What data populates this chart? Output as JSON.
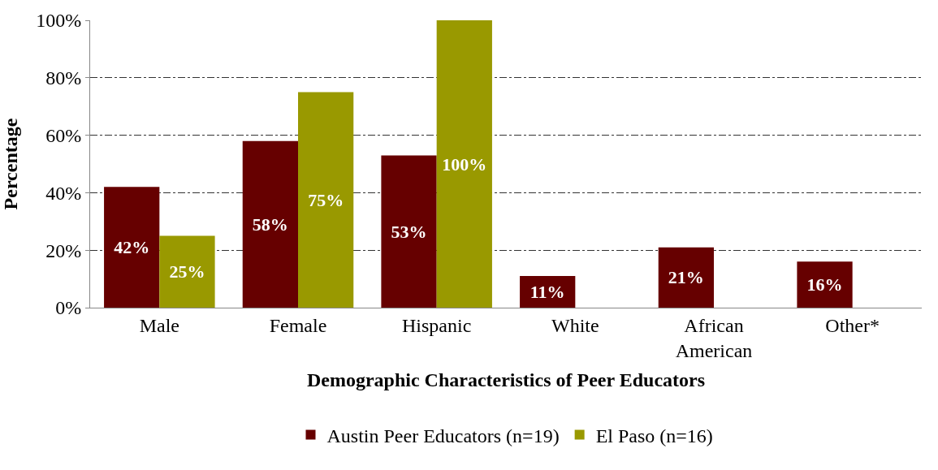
{
  "chart_data": {
    "type": "bar",
    "xlabel": "Demographic Characteristics of Peer Educators",
    "ylabel": "Percentage",
    "categories": [
      "Male",
      "Female",
      "Hispanic",
      "White",
      "African American",
      "Other*"
    ],
    "series": [
      {
        "name": "Austin Peer Educators (n=19)",
        "color": "#660000",
        "values": [
          42,
          58,
          53,
          11,
          21,
          16
        ],
        "value_labels": [
          "42%",
          "58%",
          "53%",
          "11%",
          "21%",
          "16%"
        ]
      },
      {
        "name": "El Paso (n=16)",
        "color": "#999900",
        "values": [
          25,
          75,
          100,
          null,
          null,
          null
        ],
        "value_labels": [
          "25%",
          "75%",
          "100%",
          null,
          null,
          null
        ]
      }
    ],
    "ylim": [
      0,
      100
    ],
    "yticks": [
      {
        "value": 0,
        "label": "0%"
      },
      {
        "value": 20,
        "label": "20%"
      },
      {
        "value": 40,
        "label": "40%"
      },
      {
        "value": 60,
        "label": "60%"
      },
      {
        "value": 80,
        "label": "80%"
      },
      {
        "value": 100,
        "label": "100%"
      }
    ],
    "grid": "y",
    "legend": "bottom"
  }
}
